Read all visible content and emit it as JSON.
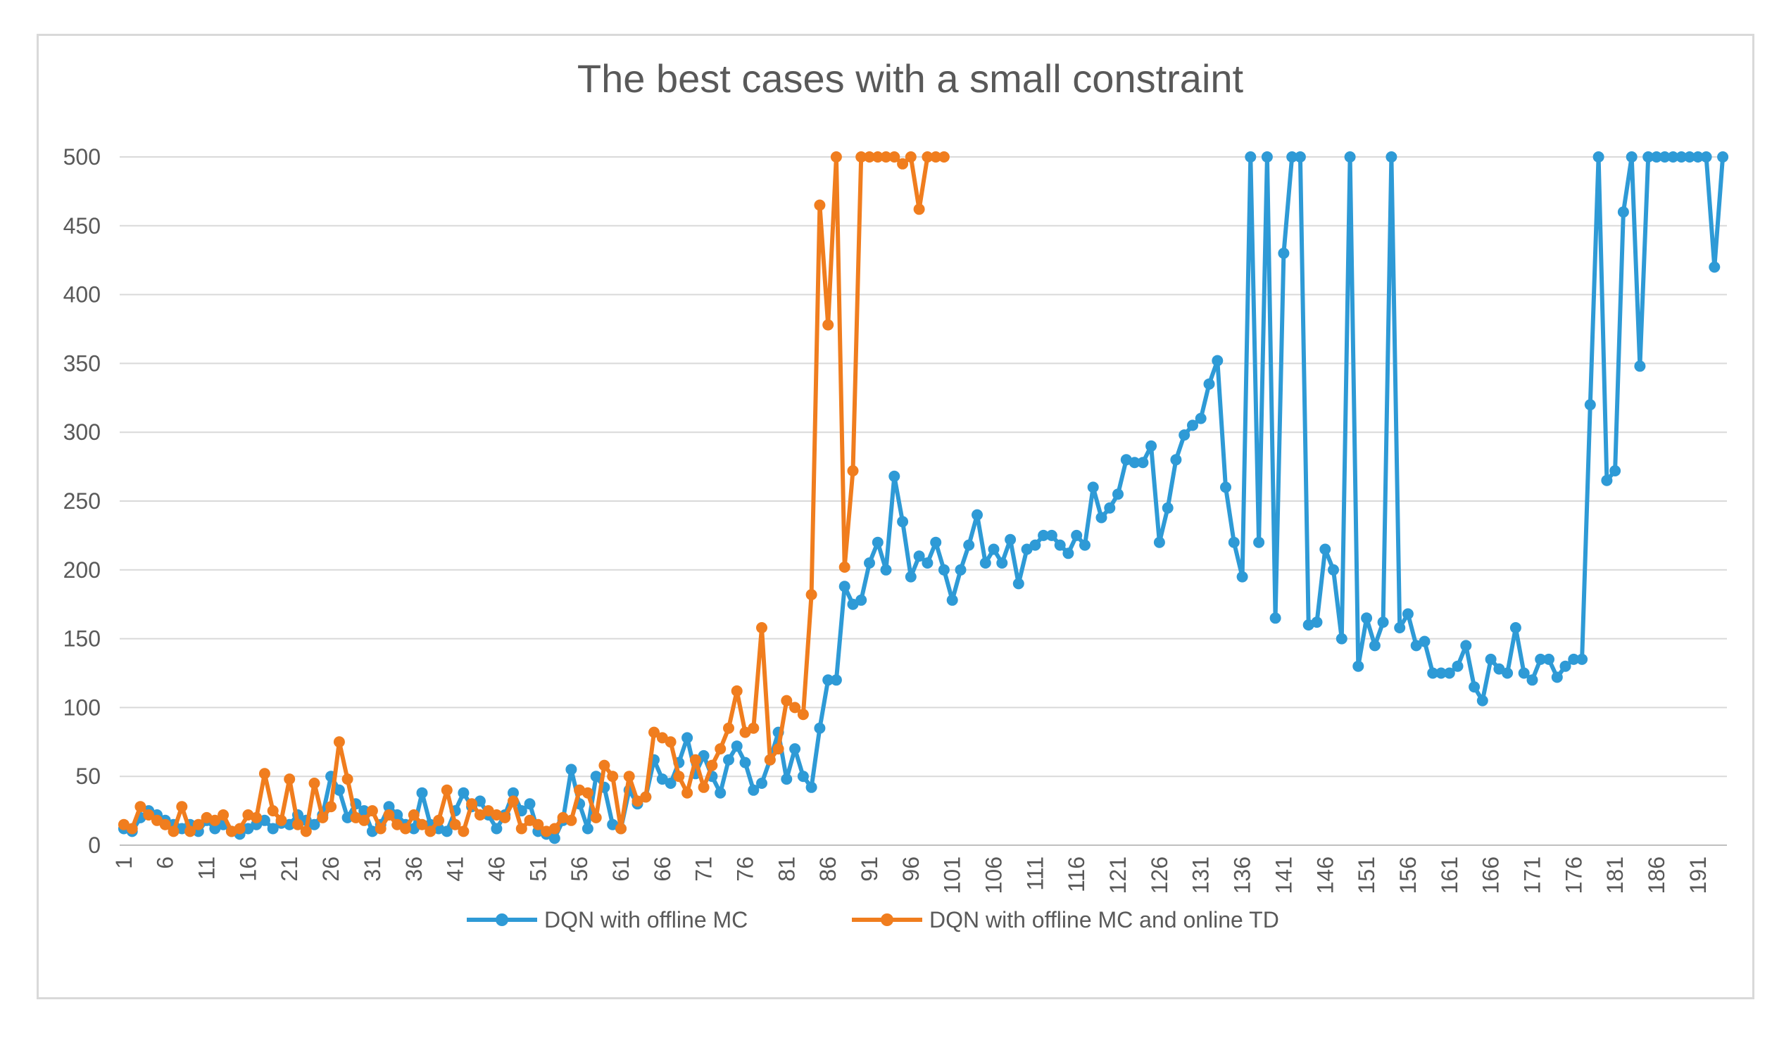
{
  "chart_data": {
    "type": "line",
    "title": "The best cases with a small constraint",
    "xlabel": "",
    "ylabel": "",
    "ylim": [
      0,
      500
    ],
    "yticks": [
      0,
      50,
      100,
      150,
      200,
      250,
      300,
      350,
      400,
      450,
      500
    ],
    "x_count": 194,
    "xtick_labels": [
      "1",
      "6",
      "11",
      "16",
      "21",
      "26",
      "31",
      "36",
      "41",
      "46",
      "51",
      "56",
      "61",
      "66",
      "71",
      "76",
      "81",
      "86",
      "91",
      "96",
      "101",
      "106",
      "111",
      "116",
      "121",
      "126",
      "131",
      "136",
      "141",
      "146",
      "151",
      "156",
      "161",
      "166",
      "171",
      "176",
      "181",
      "186",
      "191"
    ],
    "grid": "horizontal",
    "legend_position": "bottom",
    "series": [
      {
        "name": "DQN with offline MC",
        "color": "#2e9ad6",
        "values": [
          12,
          10,
          20,
          25,
          22,
          18,
          15,
          12,
          15,
          10,
          18,
          12,
          15,
          10,
          8,
          12,
          15,
          18,
          12,
          16,
          15,
          22,
          18,
          15,
          22,
          50,
          40,
          20,
          30,
          25,
          10,
          15,
          28,
          22,
          15,
          12,
          38,
          15,
          12,
          10,
          25,
          38,
          28,
          32,
          22,
          12,
          22,
          38,
          25,
          30,
          10,
          8,
          5,
          18,
          55,
          30,
          12,
          50,
          42,
          15,
          12,
          40,
          30,
          35,
          62,
          48,
          45,
          60,
          78,
          52,
          65,
          50,
          38,
          62,
          72,
          60,
          40,
          45,
          62,
          82,
          48,
          70,
          50,
          42,
          85,
          120,
          120,
          188,
          175,
          178,
          205,
          220,
          200,
          268,
          235,
          195,
          210,
          205,
          220,
          200,
          178,
          200,
          218,
          240,
          205,
          215,
          205,
          222,
          190,
          215,
          218,
          225,
          225,
          218,
          212,
          225,
          218,
          260,
          238,
          245,
          255,
          280,
          278,
          278,
          290,
          220,
          245,
          280,
          298,
          305,
          310,
          335,
          352,
          260,
          220,
          195,
          500,
          220,
          500,
          165,
          430,
          500,
          500,
          160,
          162,
          215,
          200,
          150,
          500,
          130,
          165,
          145,
          162,
          500,
          158,
          168,
          145,
          148,
          125,
          125,
          125,
          130,
          145,
          115,
          105,
          135,
          128,
          125,
          158,
          125,
          120,
          135,
          135,
          122,
          130,
          135,
          135,
          320,
          500,
          265,
          272,
          460,
          500,
          348,
          500,
          500,
          500,
          500,
          500,
          500,
          500,
          500,
          420,
          500
        ]
      },
      {
        "name": "DQN with offline MC and online TD",
        "color": "#f07d1e",
        "values": [
          15,
          12,
          28,
          22,
          18,
          15,
          10,
          28,
          10,
          15,
          20,
          18,
          22,
          10,
          12,
          22,
          20,
          52,
          25,
          18,
          48,
          15,
          10,
          45,
          20,
          28,
          75,
          48,
          20,
          18,
          25,
          12,
          22,
          15,
          12,
          22,
          15,
          10,
          18,
          40,
          15,
          10,
          30,
          22,
          25,
          22,
          20,
          32,
          12,
          18,
          15,
          10,
          12,
          20,
          18,
          40,
          38,
          20,
          58,
          50,
          12,
          50,
          32,
          35,
          82,
          78,
          75,
          50,
          38,
          62,
          42,
          58,
          70,
          85,
          112,
          82,
          85,
          158,
          62,
          70,
          105,
          100,
          95,
          182,
          465,
          378,
          500,
          202,
          272,
          500,
          500,
          500,
          500,
          500,
          495,
          500,
          462,
          500,
          500,
          500
        ]
      }
    ]
  }
}
